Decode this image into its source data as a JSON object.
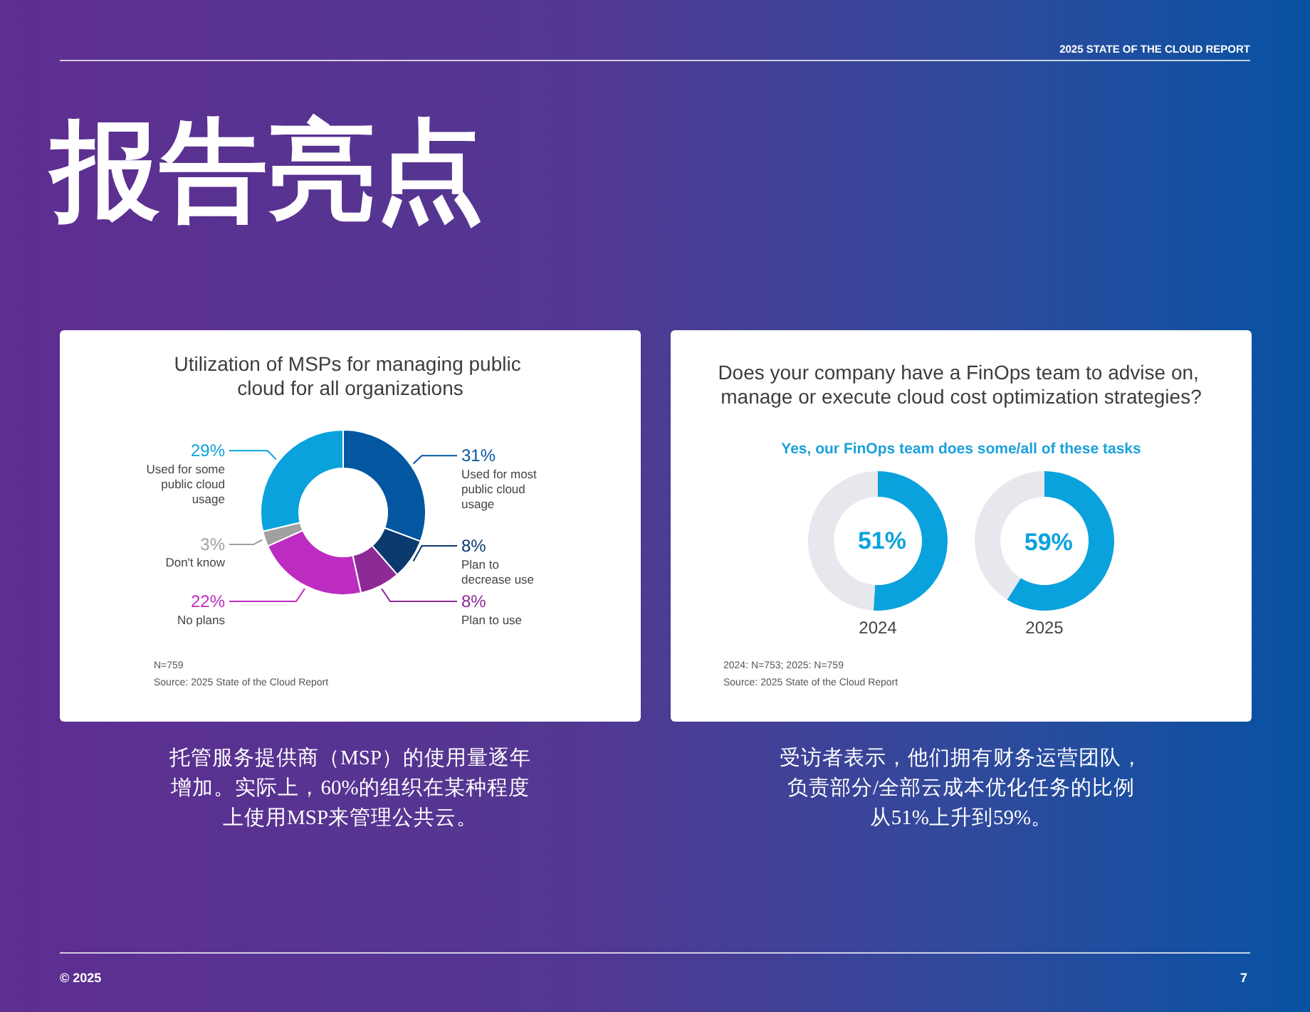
{
  "chart_data": [
    {
      "type": "other",
      "title": "报告亮点",
      "annotations": [
        "2025 STATE OF THE CLOUD REPORT",
        "© 2025",
        "7"
      ]
    },
    {
      "type": "donut",
      "title": "Utilization of MSPs for managing public cloud for all organizations",
      "categories": [
        "Used for most public cloud usage",
        "Plan to decrease use",
        "Plan to use",
        "No plans",
        "Don't know",
        "Used for some public cloud usage"
      ],
      "values": [
        31,
        8,
        8,
        22,
        3,
        29
      ],
      "colors": [
        "#0356a0",
        "#0b3a6e",
        "#8e2a96",
        "#bd2cc0",
        "#a0a0a0",
        "#0aa2dd"
      ],
      "value_labels": [
        "31%",
        "8%",
        "8%",
        "22%",
        "3%",
        "29%"
      ],
      "annotations": [
        "N=759",
        "Source: 2025 State of the Cloud Report",
        "托管服务提供商（MSP）的使用量逐年增加。实际上，60%的组织在某种程度上使用MSP来管理公共云。"
      ]
    },
    {
      "type": "donut",
      "title": "Does your company have a FinOps team to advise on, manage or execute cloud cost optimization strategies?",
      "subtitle": "Yes, our FinOps team does some/all of these tasks",
      "categories": [
        null,
        null
      ],
      "colors": [
        "#0aa2dd",
        "#e6e8ee"
      ],
      "series": [
        {
          "name": "2024",
          "values": [
            51,
            49
          ],
          "value_labels": [
            "51%",
            null
          ]
        },
        {
          "name": "2025",
          "values": [
            59,
            41
          ],
          "value_labels": [
            "59%",
            null
          ]
        }
      ],
      "annotations": [
        "2024: N=753; 2025: N=759",
        "Source: 2025 State of the Cloud Report",
        "受访者表示，他们拥有财务运营团队，负责部分/全部云成本优化任务的比例从51%上升到59%。"
      ]
    }
  ]
}
